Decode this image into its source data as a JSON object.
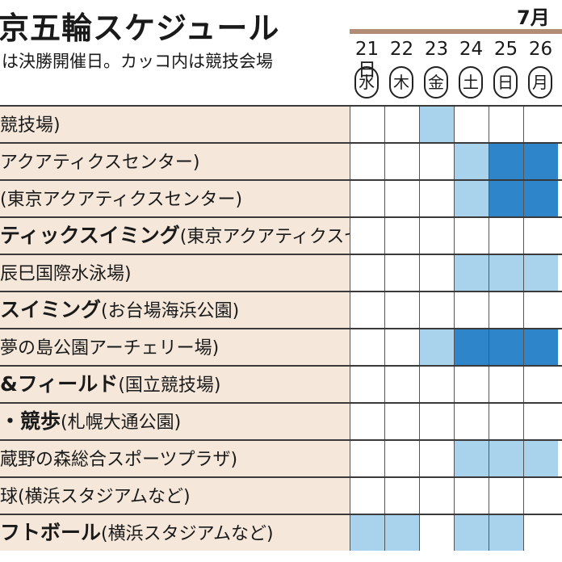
{
  "header": {
    "title": "京五輪スケジュール",
    "subtitle": "は決勝開催日。カッコ内は競技会場",
    "month": "7月"
  },
  "days": [
    {
      "date": "21日",
      "dow": "水"
    },
    {
      "date": "22",
      "dow": "木"
    },
    {
      "date": "23",
      "dow": "金"
    },
    {
      "date": "24",
      "dow": "土"
    },
    {
      "date": "25",
      "dow": "日"
    },
    {
      "date": "26",
      "dow": "月"
    }
  ],
  "colors": {
    "label_bg": "#f5e7da",
    "event": "#a9d3ec",
    "final": "#2f85c9",
    "month_bar": "#b08d74"
  },
  "rows": [
    {
      "sport": "",
      "venue": "競技場)",
      "cells": [
        0,
        0,
        1,
        0,
        0,
        0
      ]
    },
    {
      "sport": "",
      "venue": "アクアティクスセンター)",
      "cells": [
        0,
        0,
        0,
        1,
        2,
        2
      ]
    },
    {
      "sport": "",
      "venue": "(東京アクアティクスセンター)",
      "cells": [
        0,
        0,
        0,
        1,
        2,
        2
      ]
    },
    {
      "sport": "ティックスイミング",
      "venue": "(東京アクアティクスセンター)",
      "cells": [
        0,
        0,
        0,
        0,
        0,
        0
      ]
    },
    {
      "sport": "",
      "venue": "辰巳国際水泳場)",
      "cells": [
        0,
        0,
        0,
        1,
        1,
        1
      ]
    },
    {
      "sport": "スイミング",
      "venue": "(お台場海浜公園)",
      "cells": [
        0,
        0,
        0,
        0,
        0,
        0
      ]
    },
    {
      "sport": "",
      "venue": "夢の島公園アーチェリー場)",
      "cells": [
        0,
        0,
        1,
        2,
        2,
        2
      ]
    },
    {
      "sport": "&フィールド",
      "venue": "(国立競技場)",
      "cells": [
        0,
        0,
        0,
        0,
        0,
        0
      ]
    },
    {
      "sport": "・競歩",
      "venue": "(札幌大通公園)",
      "cells": [
        0,
        0,
        0,
        0,
        0,
        0
      ]
    },
    {
      "sport": "",
      "venue": "蔵野の森総合スポーツプラザ)",
      "cells": [
        0,
        0,
        0,
        1,
        1,
        1
      ]
    },
    {
      "sport": "",
      "venue": "球(横浜スタジアムなど)",
      "cells": [
        0,
        0,
        0,
        0,
        0,
        0
      ]
    },
    {
      "sport": "フトボール",
      "venue": "(横浜スタジアムなど)",
      "cells": [
        1,
        1,
        0,
        1,
        1,
        0
      ]
    }
  ]
}
